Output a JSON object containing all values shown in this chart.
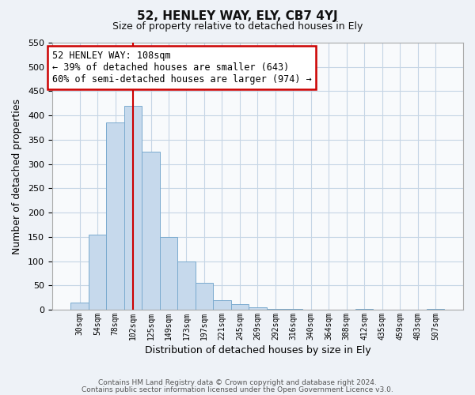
{
  "title": "52, HENLEY WAY, ELY, CB7 4YJ",
  "subtitle": "Size of property relative to detached houses in Ely",
  "xlabel": "Distribution of detached houses by size in Ely",
  "ylabel": "Number of detached properties",
  "bar_labels": [
    "30sqm",
    "54sqm",
    "78sqm",
    "102sqm",
    "125sqm",
    "149sqm",
    "173sqm",
    "197sqm",
    "221sqm",
    "245sqm",
    "269sqm",
    "292sqm",
    "316sqm",
    "340sqm",
    "364sqm",
    "388sqm",
    "412sqm",
    "435sqm",
    "459sqm",
    "483sqm",
    "507sqm"
  ],
  "bar_values": [
    15,
    155,
    385,
    420,
    325,
    150,
    100,
    55,
    20,
    12,
    5,
    1,
    1,
    0,
    0,
    0,
    1,
    0,
    0,
    0,
    1
  ],
  "bar_color": "#c6d9ec",
  "bar_edge_color": "#7aabcf",
  "vline_x_index": 3,
  "vline_color": "#cc0000",
  "annotation_title": "52 HENLEY WAY: 108sqm",
  "annotation_line1": "← 39% of detached houses are smaller (643)",
  "annotation_line2": "60% of semi-detached houses are larger (974) →",
  "box_edge_color": "#cc0000",
  "ylim": [
    0,
    550
  ],
  "yticks": [
    0,
    50,
    100,
    150,
    200,
    250,
    300,
    350,
    400,
    450,
    500,
    550
  ],
  "footer1": "Contains HM Land Registry data © Crown copyright and database right 2024.",
  "footer2": "Contains public sector information licensed under the Open Government Licence v3.0.",
  "bg_color": "#eef2f7",
  "plot_bg_color": "#f8fafc",
  "grid_color": "#c5d5e5"
}
